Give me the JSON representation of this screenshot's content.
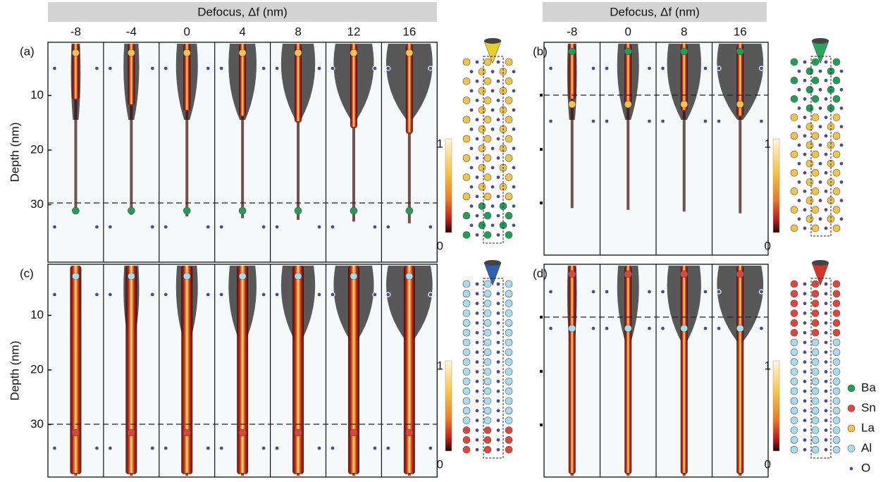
{
  "header_left": {
    "title": "Defocus, Δf (nm)",
    "defocus": [
      -8,
      -4,
      0,
      4,
      8,
      12,
      16
    ]
  },
  "header_right": {
    "title": "Defocus, Δf (nm)",
    "defocus": [
      -8,
      0,
      8,
      16
    ]
  },
  "panels": [
    {
      "label": "(a)",
      "depth_label": "Depth (nm)",
      "depth_ticks": [
        10,
        20,
        30
      ],
      "colorbar": [
        1,
        0
      ]
    },
    {
      "label": "(b)",
      "colorbar": [
        1,
        0
      ]
    },
    {
      "label": "(c)",
      "depth_label": "Depth (nm)",
      "depth_ticks": [
        10,
        20,
        30
      ],
      "colorbar": [
        1,
        0
      ]
    },
    {
      "label": "(d)",
      "colorbar": [
        1,
        0
      ]
    }
  ],
  "legend": [
    "Ba",
    "Sn",
    "La",
    "Al",
    "O"
  ]
}
